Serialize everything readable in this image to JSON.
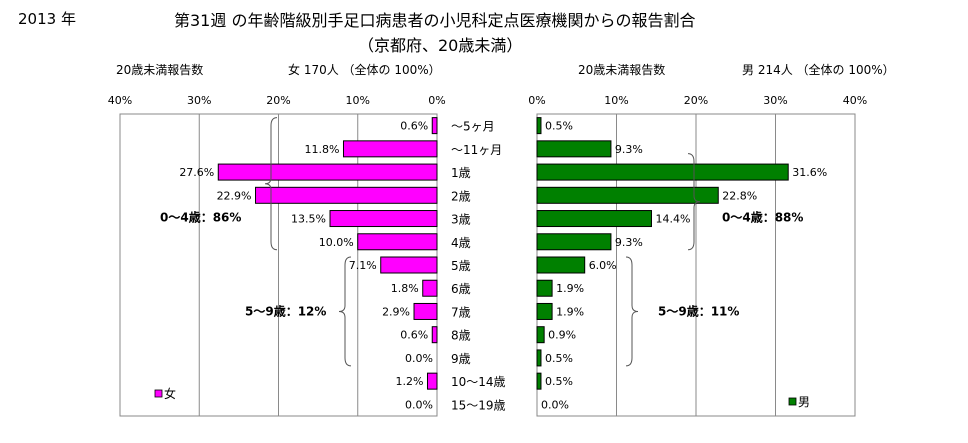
{
  "header": {
    "year": "2013 年",
    "title": "第31週 の年齢階級別手足口病患者の小児科定点医療機関からの報告割合",
    "subtitle": "（京都府、20歳未満）",
    "left_label": "20歳未満報告数",
    "left_count": "女  170人  （全体の   100%）",
    "right_label": "20歳未満報告数",
    "right_count": "男  214人  （全体の   100%）"
  },
  "chart_data": {
    "type": "bar",
    "orientation": "horizontal",
    "categories": [
      "〜5ヶ月",
      "〜11ヶ月",
      "1歳",
      "2歳",
      "3歳",
      "4歳",
      "5歳",
      "6歳",
      "7歳",
      "8歳",
      "9歳",
      "10〜14歳",
      "15〜19歳"
    ],
    "xlim": [
      0,
      40
    ],
    "x_ticks": [
      "0%",
      "10%",
      "20%",
      "30%",
      "40%"
    ],
    "grid": true,
    "series": [
      {
        "name": "女",
        "side": "left",
        "color": "#ff00ff",
        "values": [
          0.6,
          11.8,
          27.6,
          22.9,
          13.5,
          10.0,
          7.1,
          1.8,
          2.9,
          0.6,
          0.0,
          1.2,
          0.0
        ],
        "labels": [
          "0.6%",
          "11.8%",
          "27.6%",
          "22.9%",
          "13.5%",
          "10.0%",
          "7.1%",
          "1.8%",
          "2.9%",
          "0.6%",
          "0.0%",
          "1.2%",
          "0.0%"
        ]
      },
      {
        "name": "男",
        "side": "right",
        "color": "#008000",
        "values": [
          0.5,
          9.3,
          31.6,
          22.8,
          14.4,
          9.3,
          6.0,
          1.9,
          1.9,
          0.9,
          0.5,
          0.5,
          0.0
        ],
        "labels": [
          "0.5%",
          "9.3%",
          "31.6%",
          "22.8%",
          "14.4%",
          "9.3%",
          "6.0%",
          "1.9%",
          "1.9%",
          "0.9%",
          "0.5%",
          "0.5%",
          "0.0%"
        ]
      }
    ],
    "annotations": {
      "female_0_4": "0〜4歳：86%",
      "female_5_9": "5〜9歳：12%",
      "male_0_4": "0〜4歳：88%",
      "male_5_9": "5〜9歳：11%"
    },
    "legend": {
      "female": "女",
      "male": "男"
    }
  }
}
